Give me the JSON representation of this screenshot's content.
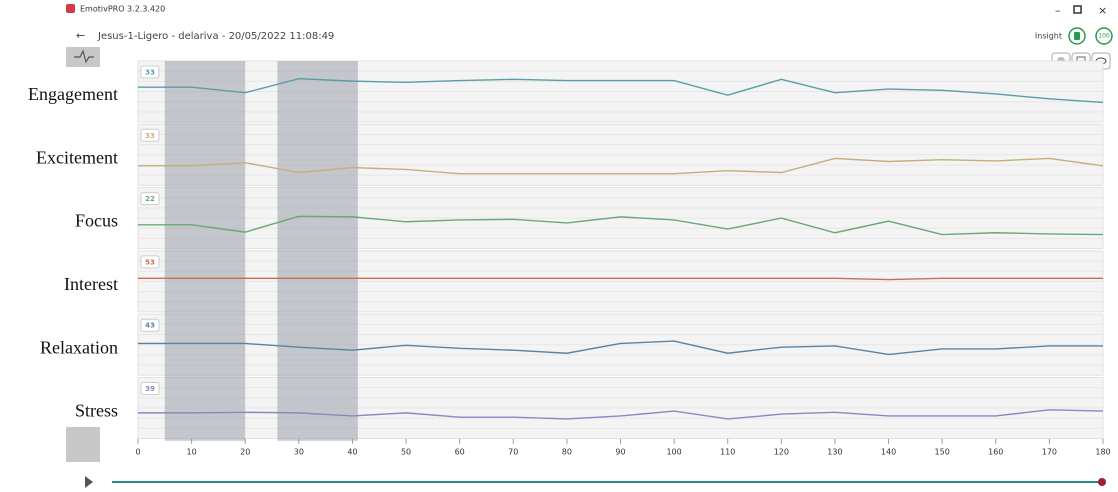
{
  "app": {
    "title": "EmotivPRO 3.2.3.420",
    "session": "Jesus-1-Ligero - delariva - 20/05/2022 11:08:49",
    "device": "Insight",
    "battery": "100"
  },
  "chart_data": {
    "type": "line",
    "x": [
      0,
      10,
      20,
      30,
      40,
      50,
      60,
      70,
      80,
      90,
      100,
      110,
      120,
      130,
      140,
      150,
      160,
      170,
      180
    ],
    "xlim": [
      0,
      180
    ],
    "xticks": [
      0,
      10,
      20,
      30,
      40,
      50,
      60,
      70,
      80,
      90,
      100,
      110,
      120,
      130,
      140,
      150,
      160,
      170,
      180
    ],
    "ylim": [
      0,
      100
    ],
    "highlights": [
      [
        5,
        20
      ],
      [
        26,
        41
      ]
    ],
    "series": [
      {
        "name": "Engagement",
        "color": "#5a9ea4",
        "level": 33,
        "values": [
          57,
          57,
          48,
          71,
          67,
          65,
          68,
          70,
          68,
          68,
          68,
          44,
          70,
          48,
          54,
          52,
          46,
          38,
          32
        ]
      },
      {
        "name": "Excitement",
        "color": "#c4ae7c",
        "level": 33,
        "values": [
          32,
          32,
          37,
          21,
          29,
          26,
          19,
          19,
          19,
          19,
          19,
          24,
          21,
          44,
          39,
          42,
          40,
          44,
          32
        ]
      },
      {
        "name": "Focus",
        "color": "#68a87a",
        "level": 22,
        "values": [
          39,
          39,
          27,
          53,
          52,
          44,
          47,
          48,
          42,
          52,
          47,
          32,
          50,
          26,
          45,
          23,
          26,
          24,
          23
        ]
      },
      {
        "name": "Interest",
        "color": "#c2714c",
        "level": 53,
        "values": [
          55,
          55,
          55,
          55,
          55,
          55,
          55,
          55,
          55,
          55,
          55,
          55,
          55,
          55,
          53,
          55,
          55,
          55,
          55
        ]
      },
      {
        "name": "Relaxation",
        "color": "#5a82a2",
        "level": 43,
        "values": [
          52,
          52,
          52,
          46,
          41,
          49,
          44,
          41,
          36,
          52,
          56,
          36,
          46,
          48,
          34,
          43,
          43,
          48,
          48
        ]
      },
      {
        "name": "Stress",
        "color": "#8a88c2",
        "level": 39,
        "values": [
          42,
          42,
          43,
          42,
          37,
          42,
          35,
          35,
          32,
          37,
          45,
          32,
          40,
          43,
          37,
          37,
          37,
          47,
          45
        ]
      }
    ]
  }
}
